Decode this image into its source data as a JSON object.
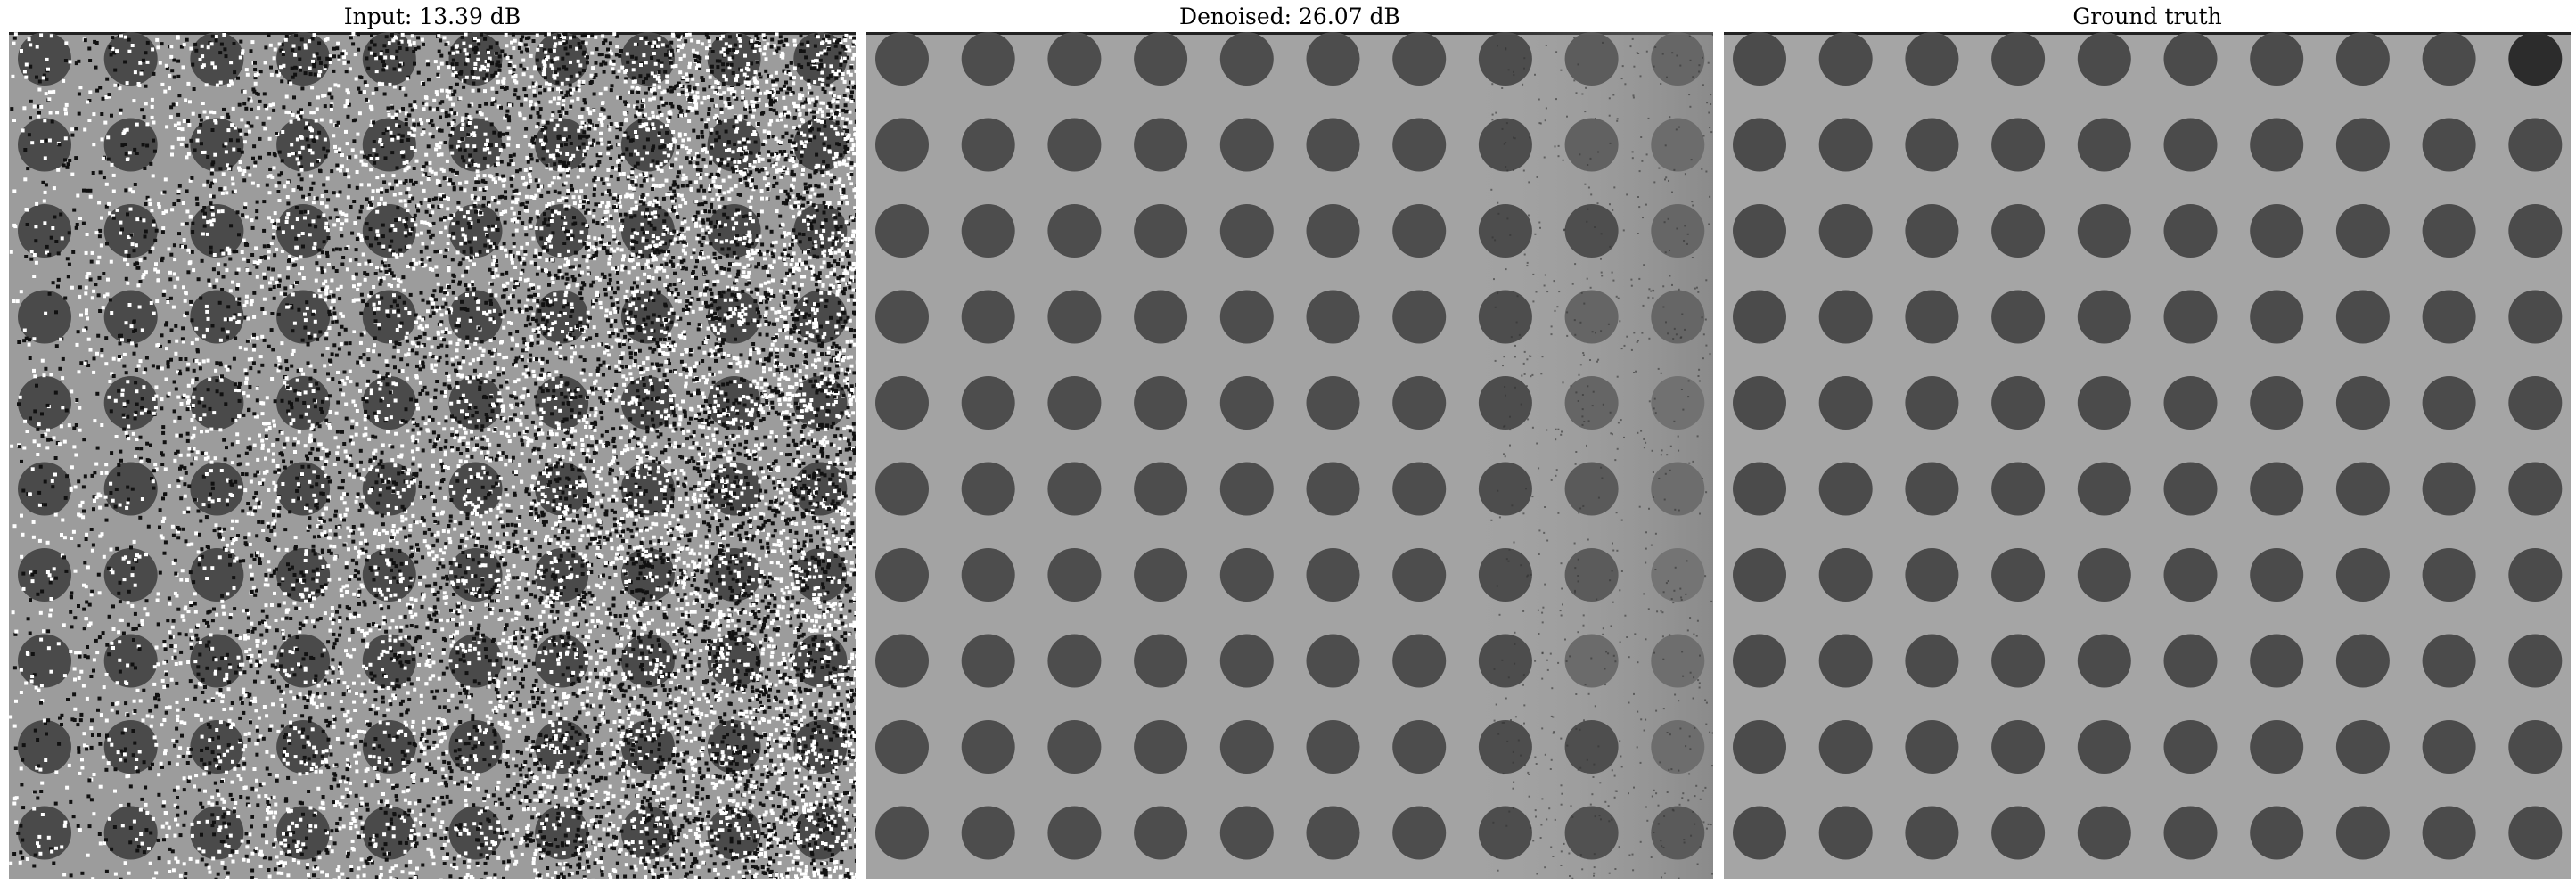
{
  "panels": [
    {
      "id": "input",
      "title": "Input: 13.39 dB",
      "background": "#9c9c9c",
      "dot_color": "#4a4a4a",
      "noise": "heavy-salt-pepper"
    },
    {
      "id": "denoised",
      "title": "Denoised: 26.07 dB",
      "background": "#a3a3a3",
      "dot_color": "#4d4d4d",
      "noise": "light"
    },
    {
      "id": "gt",
      "title": "Ground truth",
      "background": "#a5a5a5",
      "dot_color": "#4b4b4b",
      "noise": "none"
    }
  ]
}
